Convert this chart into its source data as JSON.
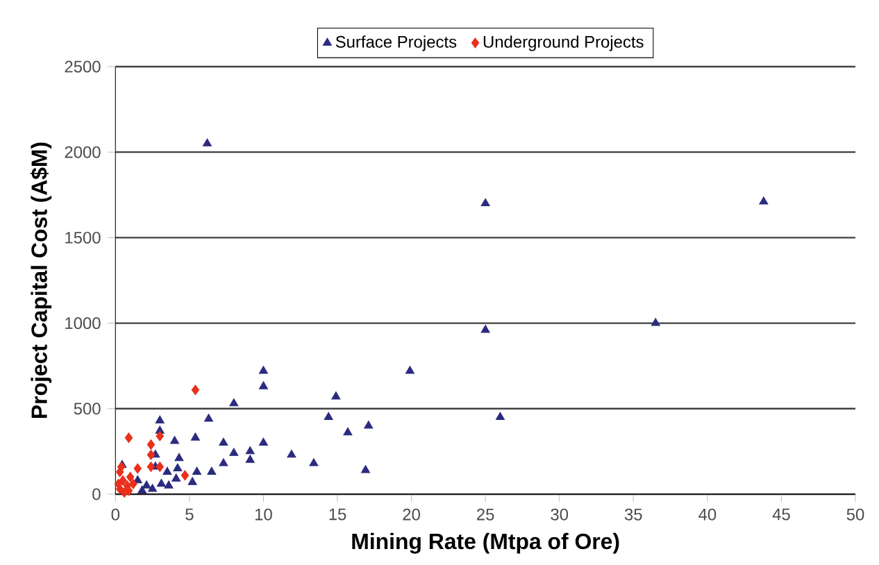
{
  "chart_data": {
    "type": "scatter",
    "xlabel": "Mining Rate (Mtpa of Ore)",
    "ylabel": "Project Capital Cost (A$M)",
    "xlim": [
      0,
      50
    ],
    "xticks": [
      0,
      5,
      10,
      15,
      20,
      25,
      30,
      35,
      40,
      45,
      50
    ],
    "ylim": [
      0,
      2500
    ],
    "yticks": [
      0,
      500,
      1000,
      1500,
      2000,
      2500
    ],
    "grid": "y",
    "legend": "top",
    "series": [
      {
        "name": "Surface Projects",
        "color": "#2b2b80",
        "marker": "triangle",
        "x": [
          6.2,
          25,
          43.8,
          25,
          36.5,
          10,
          10,
          19.9,
          8,
          14.9,
          26,
          3,
          3,
          6.3,
          14.4,
          17.1,
          15.7,
          4,
          5.4,
          7.3,
          10,
          8,
          9.1,
          9.1,
          11.9,
          13.4,
          16.9,
          7.3,
          6.5,
          5.5,
          4.3,
          4.2,
          3.5,
          5.2,
          2.7,
          2.7,
          4.1,
          3.6,
          0.45,
          1.5,
          2.1,
          2.5,
          3.1,
          1.8
        ],
        "values": [
          2050,
          1700,
          1710,
          960,
          1000,
          720,
          630,
          720,
          530,
          570,
          450,
          430,
          370,
          440,
          450,
          400,
          360,
          310,
          330,
          300,
          300,
          240,
          250,
          200,
          230,
          180,
          140,
          180,
          130,
          130,
          210,
          150,
          130,
          70,
          230,
          160,
          90,
          50,
          170,
          80,
          50,
          30,
          60,
          20
        ]
      },
      {
        "name": "Underground Projects",
        "color": "#e8301c",
        "marker": "diamond",
        "x": [
          5.4,
          0.9,
          3,
          2.4,
          2.4,
          3,
          2.4,
          1.5,
          4.7,
          0.3,
          0.5,
          0.8,
          0.3,
          1,
          0.6,
          1.2,
          0.4,
          0.9,
          0.2
        ],
        "values": [
          610,
          330,
          340,
          290,
          230,
          160,
          160,
          150,
          110,
          130,
          80,
          50,
          30,
          100,
          10,
          60,
          160,
          20,
          60
        ]
      }
    ]
  }
}
